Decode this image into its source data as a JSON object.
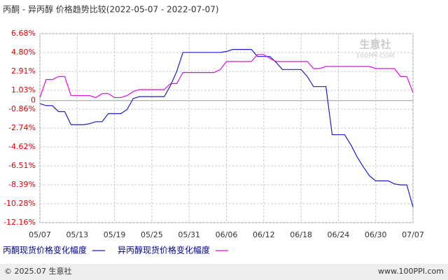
{
  "chart_data": {
    "type": "line",
    "title": "丙酮 - 异丙醇 价格趋势比较(2022-05-07 - 2022-07-07)",
    "categories": [
      "05/07",
      null,
      null,
      null,
      null,
      null,
      "05/13",
      null,
      null,
      null,
      null,
      null,
      "05/19",
      null,
      null,
      null,
      null,
      null,
      "05/25",
      null,
      null,
      null,
      null,
      null,
      "05/31",
      null,
      null,
      null,
      null,
      null,
      "06/06",
      null,
      null,
      null,
      null,
      null,
      "06/12",
      null,
      null,
      null,
      null,
      null,
      "06/18",
      null,
      null,
      null,
      null,
      null,
      "06/24",
      null,
      null,
      null,
      null,
      null,
      "06/30",
      null,
      null,
      null,
      null,
      null,
      "07/07"
    ],
    "series": [
      {
        "name": "丙酮现货价格变化幅度",
        "color": "#1c1cc8",
        "values": [
          -0.3,
          -0.5,
          -0.5,
          -1.1,
          -1.1,
          -2.4,
          -2.4,
          -2.4,
          -2.3,
          -2.1,
          -2.1,
          -1.3,
          -1.3,
          -1.3,
          -0.9,
          0.2,
          0.4,
          0.4,
          0.4,
          0.4,
          0.4,
          1.5,
          2.9,
          4.8,
          4.8,
          4.8,
          4.8,
          4.8,
          4.8,
          4.8,
          4.9,
          5.1,
          5.1,
          5.1,
          5.1,
          4.4,
          4.4,
          4.4,
          3.8,
          3.1,
          3.1,
          3.1,
          3.1,
          2.4,
          1.4,
          1.4,
          1.4,
          -3.4,
          -3.4,
          -3.4,
          -4.4,
          -5.6,
          -6.6,
          -7.5,
          -8.0,
          -8.0,
          -8.0,
          -8.3,
          -8.4,
          -8.4,
          -10.6
        ]
      },
      {
        "name": "异丙醇现货价格变化幅度",
        "color": "#e010e0",
        "values": [
          0.3,
          2.1,
          2.1,
          2.4,
          2.4,
          0.5,
          0.5,
          0.5,
          0.5,
          0.3,
          0.7,
          0.7,
          0.3,
          0.3,
          0.5,
          0.9,
          1.1,
          1.1,
          1.1,
          1.1,
          1.1,
          1.7,
          1.7,
          2.8,
          2.8,
          2.8,
          2.8,
          2.8,
          2.8,
          3.1,
          3.9,
          3.9,
          3.9,
          3.9,
          3.9,
          4.6,
          4.6,
          4.2,
          3.9,
          3.9,
          3.9,
          3.9,
          3.9,
          3.9,
          3.2,
          3.2,
          3.4,
          3.4,
          3.4,
          3.4,
          3.4,
          3.4,
          3.4,
          3.4,
          3.2,
          3.2,
          3.2,
          3.2,
          2.4,
          2.4,
          0.8
        ]
      }
    ],
    "ylim": [
      -12.16,
      6.68
    ],
    "yticks": [
      {
        "value": 6.68,
        "label": "6.68%"
      },
      {
        "value": 4.8,
        "label": "4.80%"
      },
      {
        "value": 2.91,
        "label": "2.91%"
      },
      {
        "value": 1.03,
        "label": "1.03%"
      },
      0,
      {
        "value": -0.86,
        "label": "-0.86%"
      },
      {
        "value": -2.74,
        "label": "-2.74%"
      },
      {
        "value": -4.62,
        "label": "-4.62%"
      },
      {
        "value": -6.51,
        "label": "-6.51%"
      },
      {
        "value": -8.39,
        "label": "-8.39%"
      },
      {
        "value": -10.28,
        "label": "-10.28%"
      },
      {
        "value": -12.16,
        "label": "-12.16%"
      }
    ],
    "grid": true,
    "watermark": "生意社",
    "watermark_url": "100PPI.COM",
    "footer_left": "© 2025.07 生意社",
    "footer_right": "www.100PPI.com"
  }
}
